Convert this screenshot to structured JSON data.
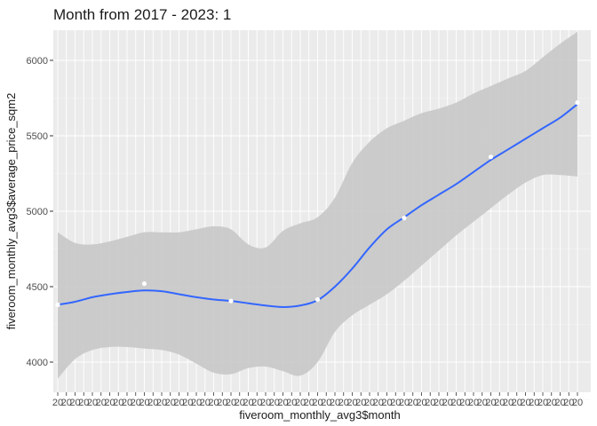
{
  "chart_data": {
    "type": "line",
    "title": "Month from 2017 - 2023: 1",
    "xlabel": "fiveroom_monthly_avg3$month",
    "ylabel": "fiveroom_monthly_avg3$average_price_sqm2",
    "x_tick_prefix": "20",
    "x_range": [
      0,
      59
    ],
    "ylim": [
      3800,
      6200
    ],
    "y_ticks": [
      4000,
      4500,
      5000,
      5500,
      6000
    ],
    "y_tick_labels": [
      "4000",
      "4500",
      "5000",
      "5500",
      "6000"
    ],
    "grid": true,
    "legend": "none",
    "points": {
      "x": [
        0,
        10,
        20,
        30,
        40,
        50,
        60
      ],
      "y": [
        4380,
        4520,
        4405,
        4415,
        4955,
        5360,
        5720
      ],
      "color": "#ffffff"
    },
    "smooth_line": {
      "color": "#3366ff",
      "x": [
        0,
        2,
        4,
        6,
        8,
        10,
        12,
        14,
        16,
        18,
        20,
        22,
        24,
        26,
        28,
        30,
        32,
        34,
        36,
        38,
        40,
        42,
        44,
        46,
        48,
        50,
        52,
        54,
        56,
        58,
        60
      ],
      "y": [
        4380,
        4400,
        4430,
        4450,
        4465,
        4475,
        4470,
        4450,
        4430,
        4415,
        4405,
        4390,
        4375,
        4365,
        4375,
        4410,
        4500,
        4620,
        4760,
        4880,
        4960,
        5040,
        5110,
        5180,
        5260,
        5340,
        5410,
        5480,
        5550,
        5620,
        5710
      ]
    },
    "confidence_band": {
      "color": "#c8c8c8",
      "lower": [
        3890,
        4020,
        4080,
        4100,
        4100,
        4090,
        4080,
        4050,
        3990,
        3930,
        3920,
        3960,
        3970,
        3940,
        3910,
        4000,
        4200,
        4310,
        4380,
        4450,
        4540,
        4640,
        4740,
        4840,
        4930,
        5020,
        5110,
        5190,
        5240,
        5240,
        5230
      ],
      "upper": [
        4860,
        4790,
        4780,
        4800,
        4830,
        4860,
        4860,
        4860,
        4880,
        4900,
        4880,
        4780,
        4760,
        4870,
        4920,
        4960,
        5090,
        5320,
        5460,
        5550,
        5600,
        5650,
        5680,
        5720,
        5780,
        5830,
        5880,
        5930,
        6020,
        6110,
        6190
      ]
    }
  }
}
